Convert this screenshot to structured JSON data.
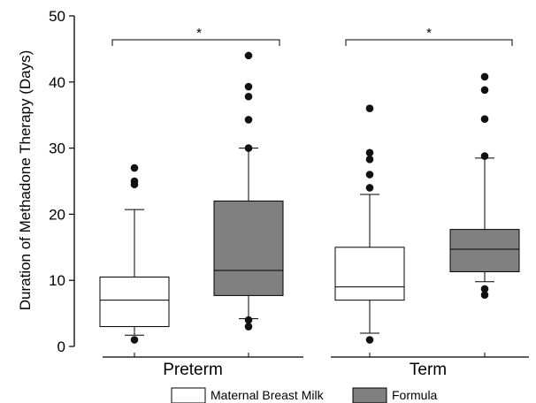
{
  "chart_data": {
    "type": "box",
    "ylabel": "Duration of Methadone Therapy (Days)",
    "ylim": [
      0,
      50
    ],
    "yticks": [
      0,
      10,
      20,
      30,
      40,
      50
    ],
    "groups": [
      "Preterm",
      "Term"
    ],
    "significance_marker": "*",
    "legend_position": "bottom-center",
    "series": [
      {
        "name": "Maternal Breast Milk",
        "color": "#ffffff",
        "boxes": [
          {
            "group": "Preterm",
            "whisker_low": 1.7,
            "q1": 3.0,
            "median": 7.0,
            "q3": 10.5,
            "whisker_high": 20.7,
            "outliers": [
              1.0,
              24.5,
              25.0,
              27.0
            ]
          },
          {
            "group": "Term",
            "whisker_low": 2.0,
            "q1": 7.0,
            "median": 9.0,
            "q3": 15.0,
            "whisker_high": 23.0,
            "outliers": [
              1.0,
              24.0,
              26.0,
              28.3,
              29.3,
              36.0
            ]
          }
        ]
      },
      {
        "name": "Formula",
        "color": "#808080",
        "boxes": [
          {
            "group": "Preterm",
            "whisker_low": 4.2,
            "q1": 7.7,
            "median": 11.5,
            "q3": 22.0,
            "whisker_high": 30.0,
            "outliers": [
              3.0,
              4.0,
              30.0,
              34.3,
              37.8,
              39.3,
              44.0
            ]
          },
          {
            "group": "Term",
            "whisker_low": 9.8,
            "q1": 11.3,
            "median": 14.7,
            "q3": 17.7,
            "whisker_high": 28.5,
            "outliers": [
              7.8,
              8.7,
              28.8,
              34.4,
              38.8,
              40.8
            ]
          }
        ]
      }
    ]
  }
}
